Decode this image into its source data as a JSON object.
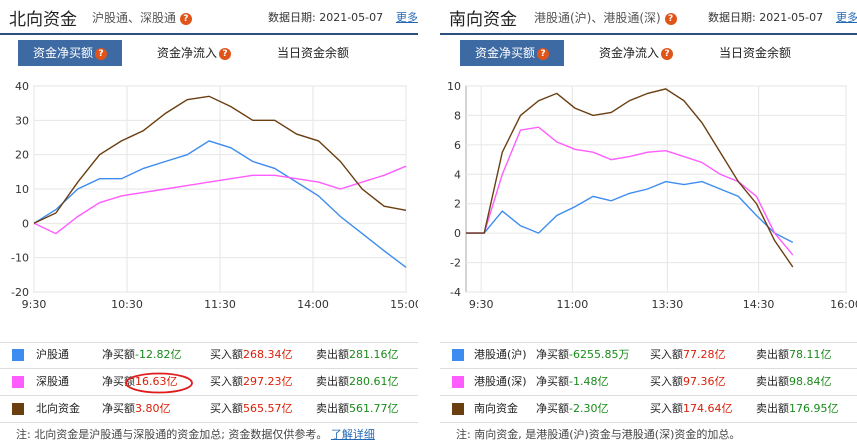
{
  "left": {
    "title": "北向资金",
    "subtitle": "沪股通、深股通",
    "date_label": "数据日期:",
    "date": "2021-05-07",
    "more": "更多",
    "tabs": [
      "资金净买额",
      "资金净流入",
      "当日资金余额"
    ],
    "legend": [
      {
        "name": "沪股通",
        "net_label": "净买额",
        "net": "-12.82亿",
        "buy_label": "买入额",
        "buy": "268.34亿",
        "sell_label": "卖出额",
        "sell": "281.16亿",
        "color": "#3d8cf0"
      },
      {
        "name": "深股通",
        "net_label": "净买额",
        "net": "16.63亿",
        "buy_label": "买入额",
        "buy": "297.23亿",
        "sell_label": "卖出额",
        "sell": "280.61亿",
        "color": "#ff5cff"
      },
      {
        "name": "北向资金",
        "net_label": "净买额",
        "net": "3.80亿",
        "buy_label": "买入额",
        "buy": "565.57亿",
        "sell_label": "卖出额",
        "sell": "561.77亿",
        "color": "#6b3e10"
      }
    ],
    "note": "注: 北向资金是沪股通与深股通的资金加总; 资金数据仅供参考。",
    "note_link": "了解详细"
  },
  "right": {
    "title": "南向资金",
    "subtitle": "港股通(沪)、港股通(深)",
    "date_label": "数据日期:",
    "date": "2021-05-07",
    "more": "更多",
    "tabs": [
      "资金净买额",
      "资金净流入",
      "当日资金余额"
    ],
    "legend": [
      {
        "name": "港股通(沪)",
        "net_label": "净买额",
        "net": "-6255.85万",
        "buy_label": "买入额",
        "buy": "77.28亿",
        "sell_label": "卖出额",
        "sell": "78.11亿",
        "color": "#3d8cf0"
      },
      {
        "name": "港股通(深)",
        "net_label": "净买额",
        "net": "-1.48亿",
        "buy_label": "买入额",
        "buy": "97.36亿",
        "sell_label": "卖出额",
        "sell": "98.84亿",
        "color": "#ff5cff"
      },
      {
        "name": "南向资金",
        "net_label": "净买额",
        "net": "-2.30亿",
        "buy_label": "买入额",
        "buy": "174.64亿",
        "sell_label": "卖出额",
        "sell": "176.95亿",
        "color": "#6b3e10"
      }
    ],
    "note": "注: 南向资金, 是港股通(沪)资金与港股通(深)资金的加总。"
  },
  "chart_data": [
    {
      "type": "line",
      "x": [
        "9:30",
        "9:45",
        "10:00",
        "10:15",
        "10:30",
        "10:45",
        "11:00",
        "11:15",
        "11:30",
        "13:00",
        "13:15",
        "13:30",
        "13:45",
        "14:00",
        "14:15",
        "14:30",
        "14:45",
        "15:00"
      ],
      "xticks": [
        "9:30",
        "10:30",
        "11:30",
        "14:00",
        "15:00"
      ],
      "yticks": [
        40,
        30,
        20,
        10,
        0,
        -10,
        -20
      ],
      "ylim": [
        -20,
        40
      ],
      "grid": true,
      "series": [
        {
          "name": "沪股通",
          "color": "#3d8cf0",
          "values": [
            0,
            4,
            10,
            13,
            13,
            16,
            18,
            20,
            24,
            22,
            18,
            16,
            12,
            8,
            2,
            -3,
            -8,
            -12.82
          ]
        },
        {
          "name": "深股通",
          "color": "#ff5cff",
          "values": [
            0,
            -3,
            2,
            6,
            8,
            9,
            10,
            11,
            12,
            13,
            14,
            14,
            13,
            12,
            10,
            12,
            14,
            16.63
          ]
        },
        {
          "name": "北向资金",
          "color": "#6b3e10",
          "values": [
            0,
            3,
            12,
            20,
            24,
            27,
            32,
            36,
            37,
            34,
            30,
            30,
            26,
            24,
            18,
            10,
            5,
            3.8
          ]
        }
      ]
    },
    {
      "type": "line",
      "x": [
        "9:30",
        "9:45",
        "10:00",
        "10:15",
        "10:30",
        "10:45",
        "11:00",
        "11:15",
        "11:30",
        "13:00",
        "13:15",
        "13:30",
        "13:45",
        "14:00",
        "14:15",
        "14:30",
        "14:45",
        "15:00",
        "15:15"
      ],
      "xticks": [
        "9:30",
        "11:00",
        "13:30",
        "14:30",
        "16:00"
      ],
      "yticks": [
        10,
        8,
        6,
        4,
        2,
        0,
        -2,
        -4
      ],
      "ylim": [
        -4,
        10
      ],
      "grid": true,
      "series": [
        {
          "name": "港股通(沪)",
          "color": "#3d8cf0",
          "values": [
            0,
            0,
            1.5,
            0.5,
            0,
            1.2,
            1.8,
            2.5,
            2.2,
            2.7,
            3.0,
            3.5,
            3.3,
            3.5,
            3.0,
            2.5,
            1.2,
            0,
            -0.63
          ]
        },
        {
          "name": "港股通(深)",
          "color": "#ff5cff",
          "values": [
            0,
            0,
            4,
            7,
            7.2,
            6.2,
            5.7,
            5.5,
            5.0,
            5.2,
            5.5,
            5.6,
            5.2,
            4.8,
            4.0,
            3.5,
            2.5,
            0,
            -1.48
          ]
        },
        {
          "name": "南向资金",
          "color": "#6b3e10",
          "values": [
            0,
            0,
            5.5,
            8,
            9,
            9.5,
            8.5,
            8,
            8.2,
            9,
            9.5,
            9.8,
            9,
            7.5,
            5.5,
            3.5,
            2,
            -0.5,
            -2.3
          ]
        }
      ]
    }
  ]
}
